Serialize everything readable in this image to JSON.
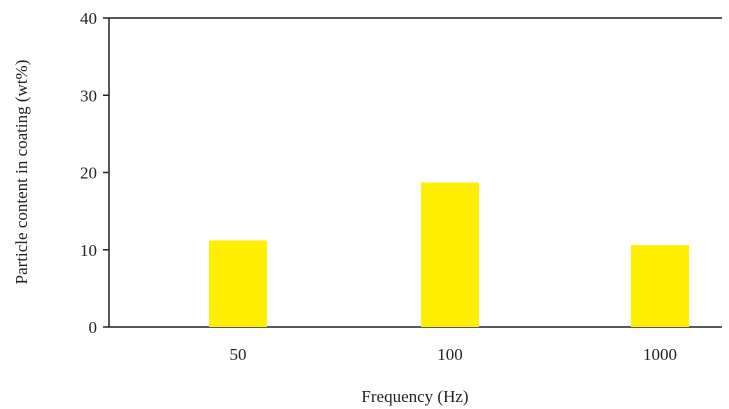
{
  "chart_data": {
    "type": "bar",
    "categories": [
      "50",
      "100",
      "1000"
    ],
    "values": [
      11.2,
      18.7,
      10.6
    ],
    "xlabel": "Frequency (Hz)",
    "ylabel": "Particle content in coating  (wt%)",
    "ylim": [
      0,
      40
    ],
    "yticks": [
      "0",
      "10",
      "20",
      "30",
      "40"
    ],
    "bar_color": "#ffee00",
    "grid": false,
    "legend": "none"
  }
}
